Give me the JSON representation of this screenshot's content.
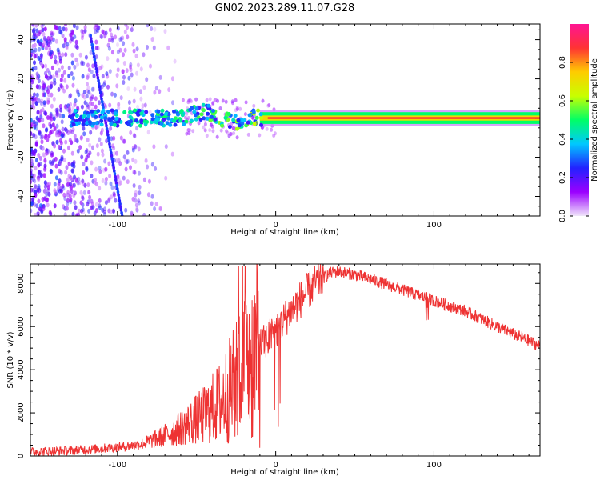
{
  "title": "GN02.2023.289.11.07.G28",
  "chart_data": [
    {
      "type": "heatmap",
      "panel": "spectrogram",
      "xlabel": "Height of straight line (km)",
      "ylabel": "Frequency (Hz)",
      "xlim": [
        -155,
        167
      ],
      "ylim": [
        -50,
        48
      ],
      "xticks": [
        -100,
        0,
        100
      ],
      "yticks": [
        -40,
        -20,
        0,
        20,
        40
      ],
      "xtick_labels": [
        "-100",
        "0",
        "100"
      ],
      "ytick_labels": [
        "-40",
        "-20",
        "0",
        "20",
        "40"
      ],
      "carrier_band_hz": [
        -3,
        3
      ],
      "diagonal_streak": {
        "from": [
          -117,
          42
        ],
        "to": [
          -97,
          -50
        ]
      },
      "colorbar": {
        "label": "Normalized spectral amplitude",
        "range": [
          0,
          1
        ],
        "ticks": [
          0.0,
          0.2,
          0.4,
          0.6,
          0.8
        ],
        "tick_labels": [
          "0.0",
          "0.2",
          "0.4",
          "0.6",
          "0.8"
        ],
        "colors": [
          "#f0e6fa",
          "#9b00ff",
          "#2222ff",
          "#00c8ff",
          "#00ff66",
          "#c8ff00",
          "#ffcc00",
          "#ff3333",
          "#ff1493"
        ]
      }
    },
    {
      "type": "line",
      "panel": "snr",
      "xlabel": "Height of straight line (km)",
      "ylabel": "SNR (10 * v/v)",
      "xlim": [
        -155,
        167
      ],
      "ylim": [
        0,
        8900
      ],
      "xticks": [
        -100,
        0,
        100
      ],
      "yticks": [
        0,
        2000,
        4000,
        6000,
        8000
      ],
      "xtick_labels": [
        "-100",
        "0",
        "100"
      ],
      "ytick_labels": [
        "0",
        "2000",
        "4000",
        "6000",
        "8000"
      ],
      "color": "#ee3333",
      "x": [
        -155,
        -130,
        -110,
        -95,
        -85,
        -75,
        -65,
        -55,
        -45,
        -35,
        -25,
        -18,
        -12,
        -5,
        0,
        5,
        15,
        25,
        35,
        40,
        50,
        60,
        80,
        100,
        120,
        140,
        167
      ],
      "y": [
        200,
        250,
        350,
        450,
        550,
        800,
        1100,
        1500,
        1900,
        2500,
        3400,
        4200,
        4900,
        5400,
        5800,
        6300,
        7200,
        8000,
        8500,
        8550,
        8400,
        8200,
        7700,
        7200,
        6700,
        6000,
        5100
      ]
    }
  ]
}
